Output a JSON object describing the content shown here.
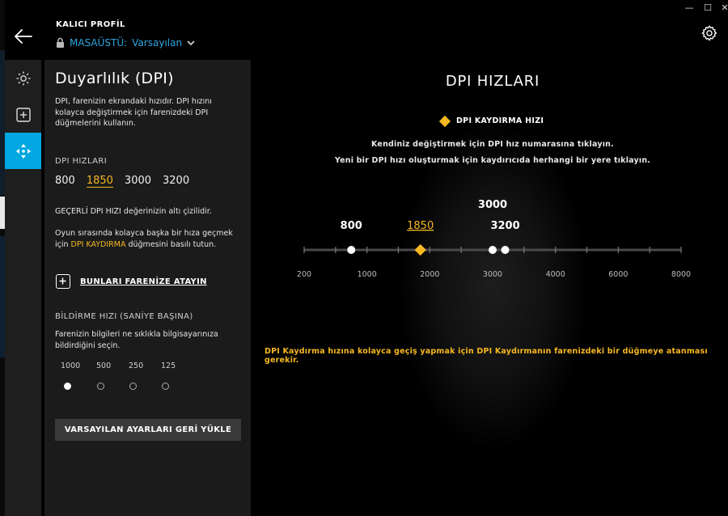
{
  "window": {
    "minimize": "—",
    "maximize": "☐",
    "close": "✕"
  },
  "header": {
    "profile_label": "KALICI PROFİL",
    "profile_name": "MASAÜSTÜ:",
    "profile_value": "Varsayılan"
  },
  "rail": {
    "items": [
      {
        "name": "lighting-icon",
        "active": false
      },
      {
        "name": "assignments-icon",
        "active": false
      },
      {
        "name": "sensitivity-icon",
        "active": true
      }
    ]
  },
  "panel": {
    "title": "Duyarlılık (DPI)",
    "description": "DPI, farenizin ekrandaki hızıdır. DPI hızını kolayca değiştirmek için farenizdeki DPI düğmelerini kullanın.",
    "dpi_speeds_label": "DPI HIZLARI",
    "dpi_speeds": [
      "800",
      "1850",
      "3000",
      "3200"
    ],
    "current_note": "GEÇERLİ DPI HIZI değerinizin altı çizilidir.",
    "shift_note_pre": "Oyun sırasında kolayca başka bir hıza geçmek için ",
    "shift_note_hl": "DPI KAYDIRMA",
    "shift_note_post": " düğmesini basılı tutun.",
    "assign_label": "BUNLARI FARENİZE ATAYIN",
    "report_rate_label": "BİLDİRME HIZI (SANİYE BAŞINA)",
    "report_rate_desc": "Farenizin bilgileri ne sıklıkla bilgisayarınıza bildirdiğini seçin.",
    "report_rates": [
      "1000",
      "500",
      "250",
      "125"
    ],
    "report_rate_selected": "1000",
    "reset_label": "VARSAYILAN AYARLARI GERİ YÜKLE"
  },
  "main": {
    "title": "DPI HIZLARI",
    "shift_legend": "DPI KAYDIRMA HIZI",
    "instruction1": "Kendiniz değiştirmek için DPI hız numarasına tıklayın.",
    "instruction2": "Yeni bir DPI hızı oluşturmak için kaydırıcıda herhangi bir yere tıklayın.",
    "note": "DPI Kaydırma hızına kolayca geçiş yapmak için DPI Kaydırmanın farenizdeki bir düğmeye atanması gerekir."
  },
  "slider": {
    "min": 200,
    "max": 8000,
    "scale_labels": [
      "200",
      "1000",
      "2000",
      "3000",
      "4000",
      "6000",
      "8000"
    ],
    "points": [
      {
        "value": 800,
        "label": "800",
        "kind": "dot"
      },
      {
        "value": 1850,
        "label": "1850",
        "kind": "shift",
        "current": true
      },
      {
        "value": 3000,
        "label": "3000",
        "kind": "dot"
      },
      {
        "value": 3200,
        "label": "3200",
        "kind": "dot"
      }
    ],
    "colors": {
      "accent": "#f7b822",
      "track": "#4a4a4a",
      "tick": "#777777",
      "dot": "#ffffff"
    }
  }
}
